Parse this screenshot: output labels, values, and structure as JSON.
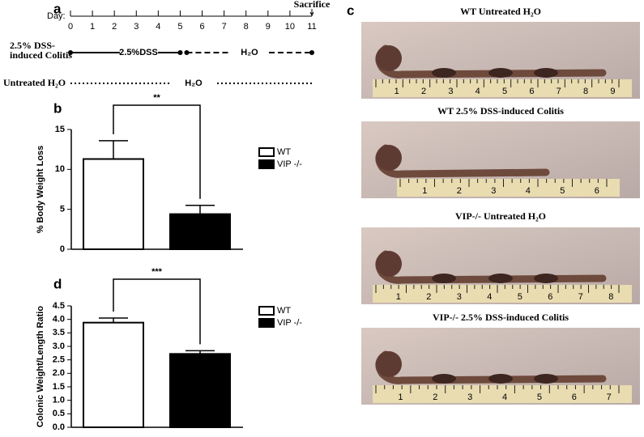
{
  "panels": [
    "a",
    "b",
    "c",
    "d"
  ],
  "timeline": {
    "day_label": "Day:",
    "days": [
      "0",
      "1",
      "2",
      "3",
      "4",
      "5",
      "6",
      "7",
      "8",
      "9",
      "10",
      "11"
    ],
    "sacrifice": "Sacrifice",
    "rows": [
      {
        "label": [
          "2.5% DSS-",
          "induced Colitis"
        ],
        "phase1": "2.5%DSS",
        "phase2": "H₂O"
      },
      {
        "label": [
          "Untreated H₂O"
        ],
        "phase2": "H₂O"
      }
    ]
  },
  "chart_data": [
    {
      "type": "bar",
      "ylabel": "% Body Weight Loss",
      "categories": [
        null
      ],
      "series": [
        {
          "name": "WT",
          "color": "#ffffff",
          "values": [
            11.3
          ],
          "errors": [
            2.3
          ]
        },
        {
          "name": "VIP -/-",
          "color": "#000000",
          "values": [
            4.4
          ],
          "errors": [
            1.1
          ]
        }
      ],
      "ylim": [
        0,
        15
      ],
      "yticks": [
        0,
        5,
        10,
        15
      ],
      "annotation": "**",
      "legend": "right"
    },
    {
      "type": "bar",
      "ylabel": "Colonic Weight/Length Ratio",
      "categories": [
        null
      ],
      "series": [
        {
          "name": "WT",
          "color": "#ffffff",
          "values": [
            3.88
          ],
          "errors": [
            0.17
          ]
        },
        {
          "name": "VIP -/-",
          "color": "#000000",
          "values": [
            2.72
          ],
          "errors": [
            0.12
          ]
        }
      ],
      "ylim": [
        0,
        4.5
      ],
      "yticks": [
        {
          "value": 0,
          "label": "0.0"
        },
        0.5,
        {
          "value": 1,
          "label": "1.0"
        },
        1.5,
        {
          "value": 2,
          "label": "2.0"
        },
        2.5,
        {
          "value": 3,
          "label": "3.0"
        },
        3.5,
        {
          "value": 4,
          "label": "4.0"
        },
        4.5
      ],
      "annotation": "***",
      "legend": "right"
    }
  ],
  "photos": [
    {
      "title": "WT    Untreated H₂O",
      "ruler": [
        "1",
        "2",
        "3",
        "4",
        "5",
        "6",
        "7",
        "8",
        "9"
      ]
    },
    {
      "title": "WT    2.5% DSS-induced Colitis",
      "ruler": [
        "1",
        "2",
        "3",
        "4",
        "5",
        "6"
      ]
    },
    {
      "title": "VIP-/- Untreated H₂O",
      "ruler": [
        "1",
        "2",
        "3",
        "4",
        "5",
        "6",
        "7",
        "8"
      ]
    },
    {
      "title": "VIP-/- 2.5% DSS-induced Colitis",
      "ruler": [
        "1",
        "2",
        "3",
        "4",
        "5",
        "6",
        "7"
      ]
    }
  ]
}
